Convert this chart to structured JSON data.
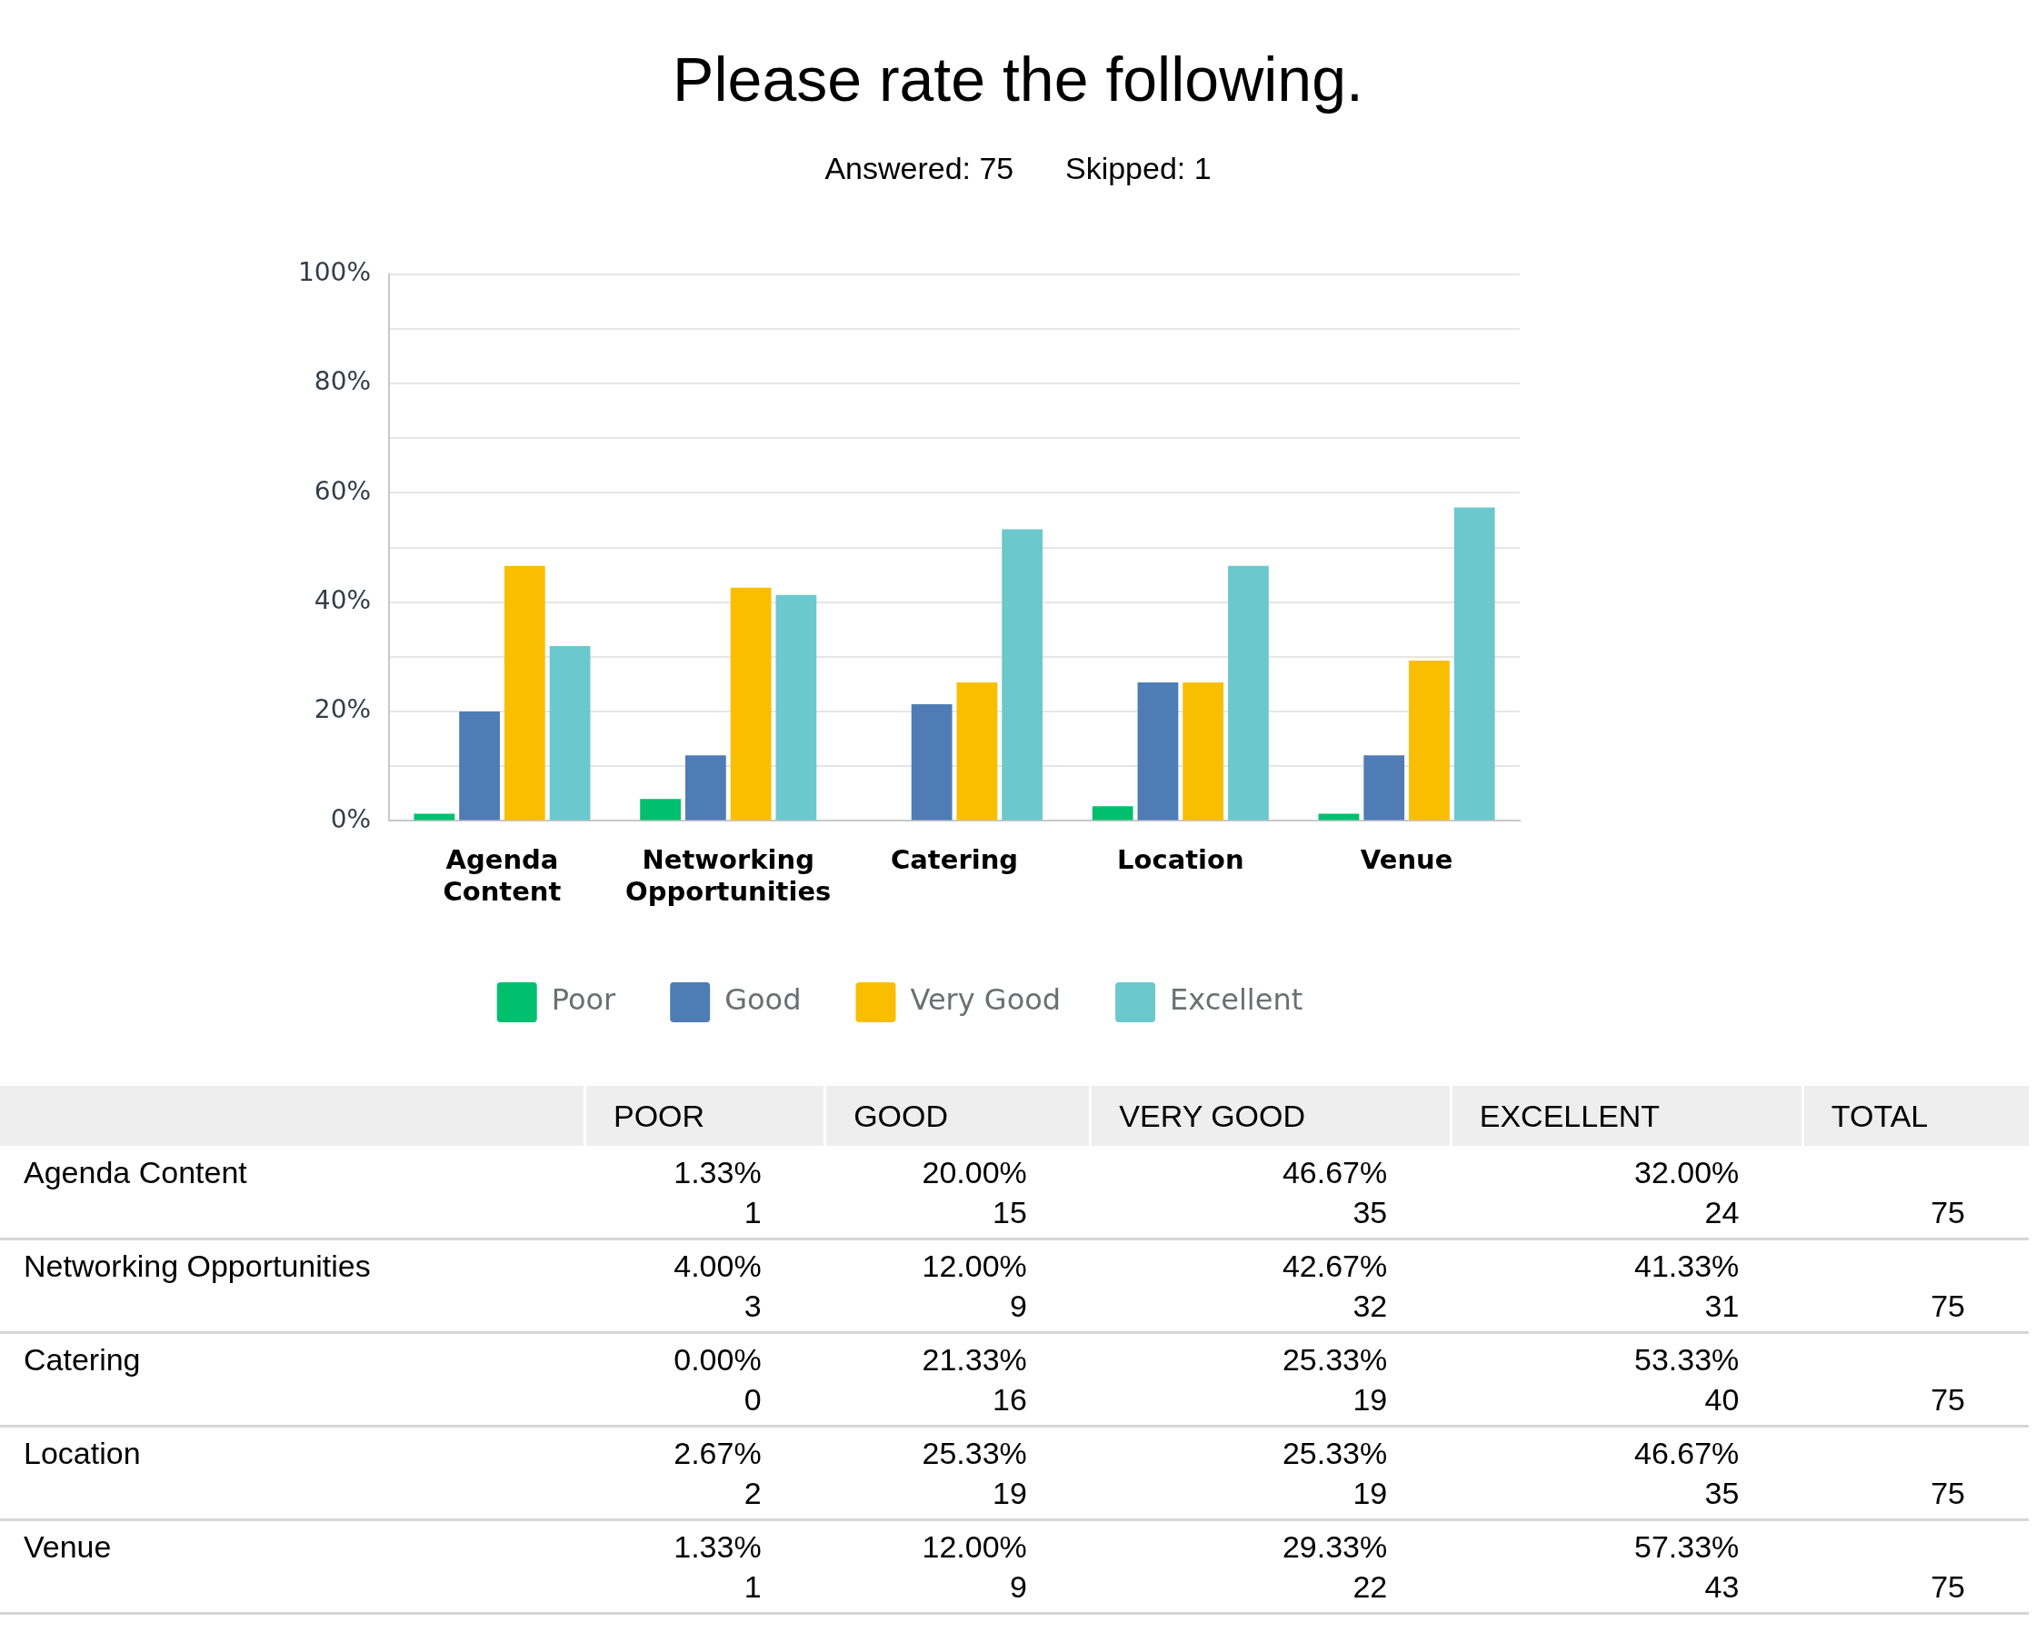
{
  "chart_data": [
    {
      "type": "bar",
      "title": "Please rate the following.",
      "subtitle": "Answered: 75      Skipped: 1",
      "categories": [
        "Agenda Content",
        "Networking Opportunities",
        "Catering",
        "Location",
        "Venue"
      ],
      "series": [
        {
          "name": "Poor",
          "color": "#00bf6f",
          "values": [
            1.33,
            4.0,
            0.0,
            2.67,
            1.33
          ]
        },
        {
          "name": "Good",
          "color": "#507cb6",
          "values": [
            20.0,
            12.0,
            21.33,
            25.33,
            12.0
          ]
        },
        {
          "name": "Very Good",
          "color": "#f9be00",
          "values": [
            46.67,
            42.67,
            25.33,
            25.33,
            29.33
          ]
        },
        {
          "name": "Excellent",
          "color": "#6bc8cd",
          "values": [
            32.0,
            41.33,
            53.33,
            46.67,
            57.33
          ]
        }
      ],
      "ylim": [
        0,
        100
      ],
      "yticks": [
        {
          "value": 0,
          "label": "0%"
        },
        {
          "value": 10,
          "label": null
        },
        {
          "value": 20,
          "label": "20%"
        },
        {
          "value": 30,
          "label": null
        },
        {
          "value": 40,
          "label": "40%"
        },
        {
          "value": 50,
          "label": null
        },
        {
          "value": 60,
          "label": "60%"
        },
        {
          "value": 70,
          "label": null
        },
        {
          "value": 80,
          "label": "80%"
        },
        {
          "value": 90,
          "label": null
        },
        {
          "value": 100,
          "label": "100%"
        }
      ],
      "grid": "y",
      "legend": "bottom"
    },
    {
      "type": "other",
      "categories": [
        "Agenda Content",
        "Networking Opportunities",
        "Catering",
        "Location",
        "Venue"
      ],
      "data_labels": true,
      "series": [
        {
          "name": "POOR",
          "values": [
            1.33,
            4.0,
            0.0,
            2.67,
            1.33
          ],
          "value_labels": [
            "1.33%",
            "4.00%",
            "0.00%",
            "2.67%",
            "1.33%"
          ]
        },
        {
          "values": [
            1,
            3,
            0,
            2,
            1
          ]
        },
        {
          "name": "GOOD",
          "values": [
            20.0,
            12.0,
            21.33,
            25.33,
            12.0
          ],
          "value_labels": [
            "20.00%",
            "12.00%",
            "21.33%",
            "25.33%",
            "12.00%"
          ]
        },
        {
          "values": [
            15,
            9,
            16,
            19,
            9
          ]
        },
        {
          "name": "VERY GOOD",
          "values": [
            46.67,
            42.67,
            25.33,
            25.33,
            29.33
          ],
          "value_labels": [
            "46.67%",
            "42.67%",
            "25.33%",
            "25.33%",
            "29.33%"
          ]
        },
        {
          "values": [
            35,
            32,
            19,
            19,
            22
          ]
        },
        {
          "name": "EXCELLENT",
          "values": [
            32.0,
            41.33,
            53.33,
            46.67,
            57.33
          ],
          "value_labels": [
            "32.00%",
            "41.33%",
            "53.33%",
            "46.67%",
            "57.33%"
          ]
        },
        {
          "values": [
            24,
            31,
            40,
            35,
            43
          ]
        },
        {
          "name": "TOTAL",
          "values": [
            75,
            75,
            75,
            75,
            75
          ]
        }
      ]
    }
  ]
}
